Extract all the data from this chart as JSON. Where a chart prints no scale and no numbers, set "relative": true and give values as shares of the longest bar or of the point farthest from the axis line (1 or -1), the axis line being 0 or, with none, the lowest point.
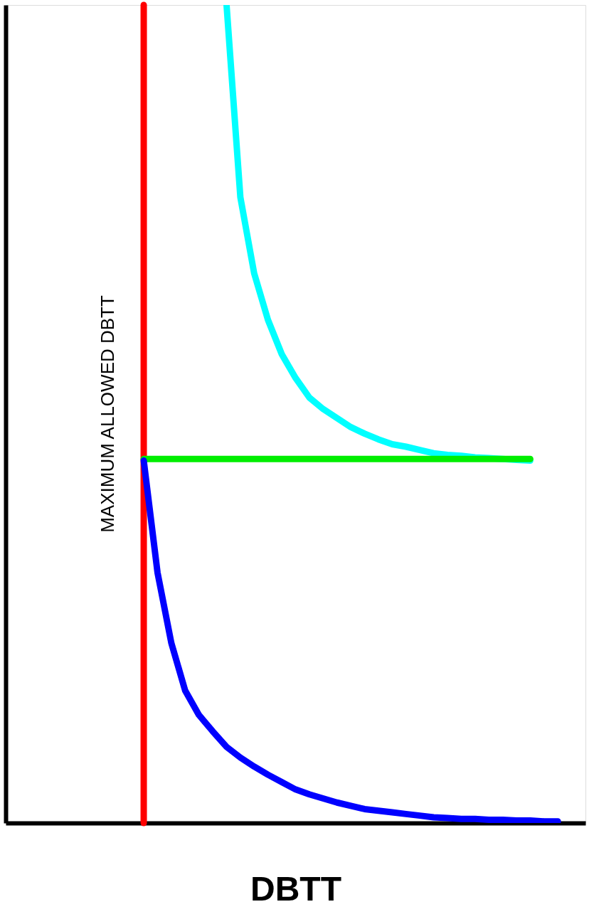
{
  "chart_data": {
    "type": "line",
    "xlabel": "DBTT",
    "relative": true,
    "categories": [
      null,
      null,
      null,
      null,
      null,
      null,
      null,
      null,
      null,
      null,
      null,
      null,
      null,
      null,
      null,
      null,
      null,
      null,
      null,
      null,
      null,
      null,
      null,
      null,
      null,
      null,
      null,
      null,
      null,
      null,
      null,
      null,
      null,
      null,
      null,
      null,
      null,
      null,
      null,
      null,
      null,
      null,
      null
    ],
    "series": [
      {
        "color": "#00ffff",
        "values": [
          null,
          null,
          null,
          null,
          null,
          null,
          null,
          null,
          null,
          null,
          null,
          null,
          null,
          null,
          null,
          null,
          1.0,
          0.765,
          0.672,
          0.615,
          0.573,
          0.544,
          0.52,
          0.506,
          0.495,
          0.484,
          0.476,
          0.469,
          0.463,
          0.46,
          0.456,
          0.452,
          0.45,
          0.449,
          0.447,
          0.446,
          0.445,
          0.444,
          0.443,
          null,
          null,
          null,
          null
        ]
      },
      {
        "color": "#00ee00",
        "values": [
          null,
          null,
          null,
          null,
          null,
          null,
          null,
          null,
          null,
          null,
          0.445,
          0.445,
          0.445,
          0.445,
          0.445,
          0.445,
          0.445,
          0.445,
          0.445,
          0.445,
          0.445,
          0.445,
          0.445,
          0.445,
          0.445,
          0.445,
          0.445,
          0.445,
          0.445,
          0.445,
          0.445,
          0.445,
          0.445,
          0.445,
          0.445,
          0.445,
          0.445,
          0.445,
          0.445,
          null,
          null,
          null,
          null
        ]
      },
      {
        "color": "#0000ff",
        "values": [
          null,
          null,
          null,
          null,
          null,
          null,
          null,
          null,
          null,
          null,
          0.443,
          0.306,
          0.22,
          0.162,
          0.132,
          0.112,
          0.093,
          0.08,
          0.069,
          0.059,
          0.05,
          0.041,
          0.035,
          0.03,
          0.025,
          0.021,
          0.017,
          0.015,
          0.013,
          0.011,
          0.009,
          0.007,
          0.006,
          0.005,
          0.005,
          0.004,
          0.004,
          0.003,
          0.003,
          0.002,
          0.002,
          null,
          null
        ]
      }
    ],
    "annotations": [
      "MAXIMUM ALLOWED DBTT"
    ]
  }
}
